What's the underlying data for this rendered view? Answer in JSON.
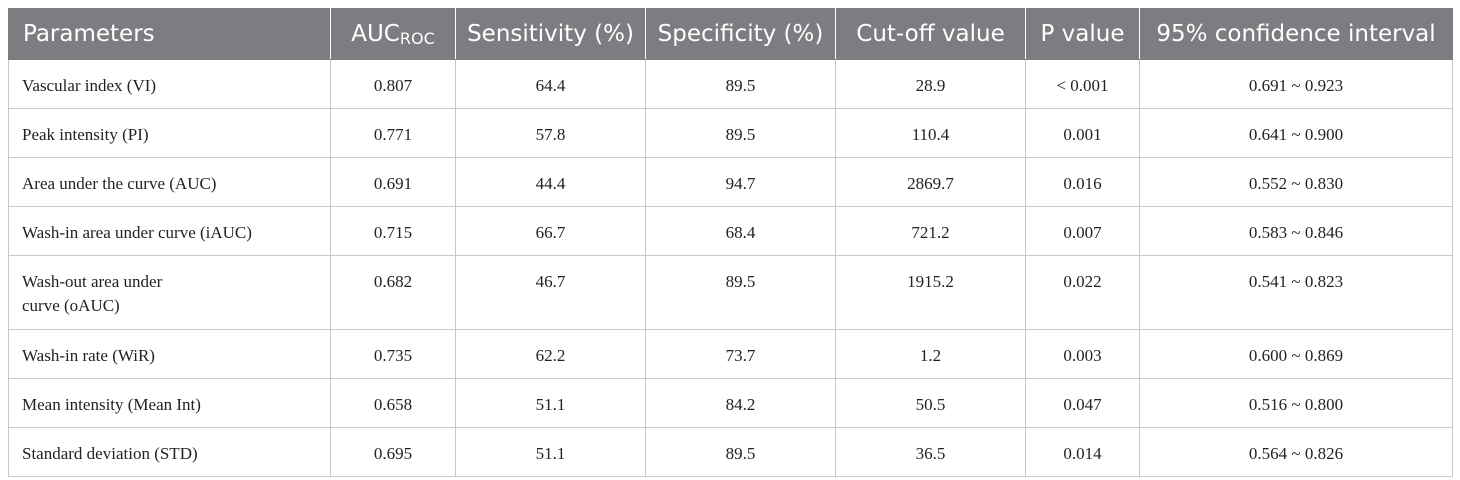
{
  "table": {
    "headers": {
      "parameters": "Parameters",
      "auc_main": "AUC",
      "auc_sub": "ROC",
      "sensitivity": "Sensitivity (%)",
      "specificity": "Specificity (%)",
      "cutoff": "Cut-off value",
      "pvalue": "P value",
      "ci": "95% confidence interval"
    },
    "rows": [
      {
        "parameter": "Vascular index (VI)",
        "auc": "0.807",
        "sensitivity": "64.4",
        "specificity": "89.5",
        "cutoff": "28.9",
        "p": "< 0.001",
        "ci": "0.691 ~ 0.923"
      },
      {
        "parameter": "Peak intensity (PI)",
        "auc": "0.771",
        "sensitivity": "57.8",
        "specificity": "89.5",
        "cutoff": "110.4",
        "p": "0.001",
        "ci": "0.641 ~ 0.900"
      },
      {
        "parameter": "Area under the curve (AUC)",
        "auc": "0.691",
        "sensitivity": "44.4",
        "specificity": "94.7",
        "cutoff": "2869.7",
        "p": "0.016",
        "ci": "0.552 ~ 0.830"
      },
      {
        "parameter": "Wash-in area under curve (iAUC)",
        "auc": "0.715",
        "sensitivity": "66.7",
        "specificity": "68.4",
        "cutoff": "721.2",
        "p": "0.007",
        "ci": "0.583 ~ 0.846"
      },
      {
        "parameter_line1": "Wash-out area under",
        "parameter_line2": "curve (oAUC)",
        "auc": "0.682",
        "sensitivity": "46.7",
        "specificity": "89.5",
        "cutoff": "1915.2",
        "p": "0.022",
        "ci": "0.541 ~ 0.823"
      },
      {
        "parameter": "Wash-in rate (WiR)",
        "auc": "0.735",
        "sensitivity": "62.2",
        "specificity": "73.7",
        "cutoff": "1.2",
        "p": "0.003",
        "ci": "0.600 ~ 0.869"
      },
      {
        "parameter": "Mean intensity (Mean Int)",
        "auc": "0.658",
        "sensitivity": "51.1",
        "specificity": "84.2",
        "cutoff": "50.5",
        "p": "0.047",
        "ci": "0.516 ~ 0.800"
      },
      {
        "parameter": "Standard deviation (STD)",
        "auc": "0.695",
        "sensitivity": "51.1",
        "specificity": "89.5",
        "cutoff": "36.5",
        "p": "0.014",
        "ci": "0.564 ~ 0.826"
      }
    ]
  }
}
